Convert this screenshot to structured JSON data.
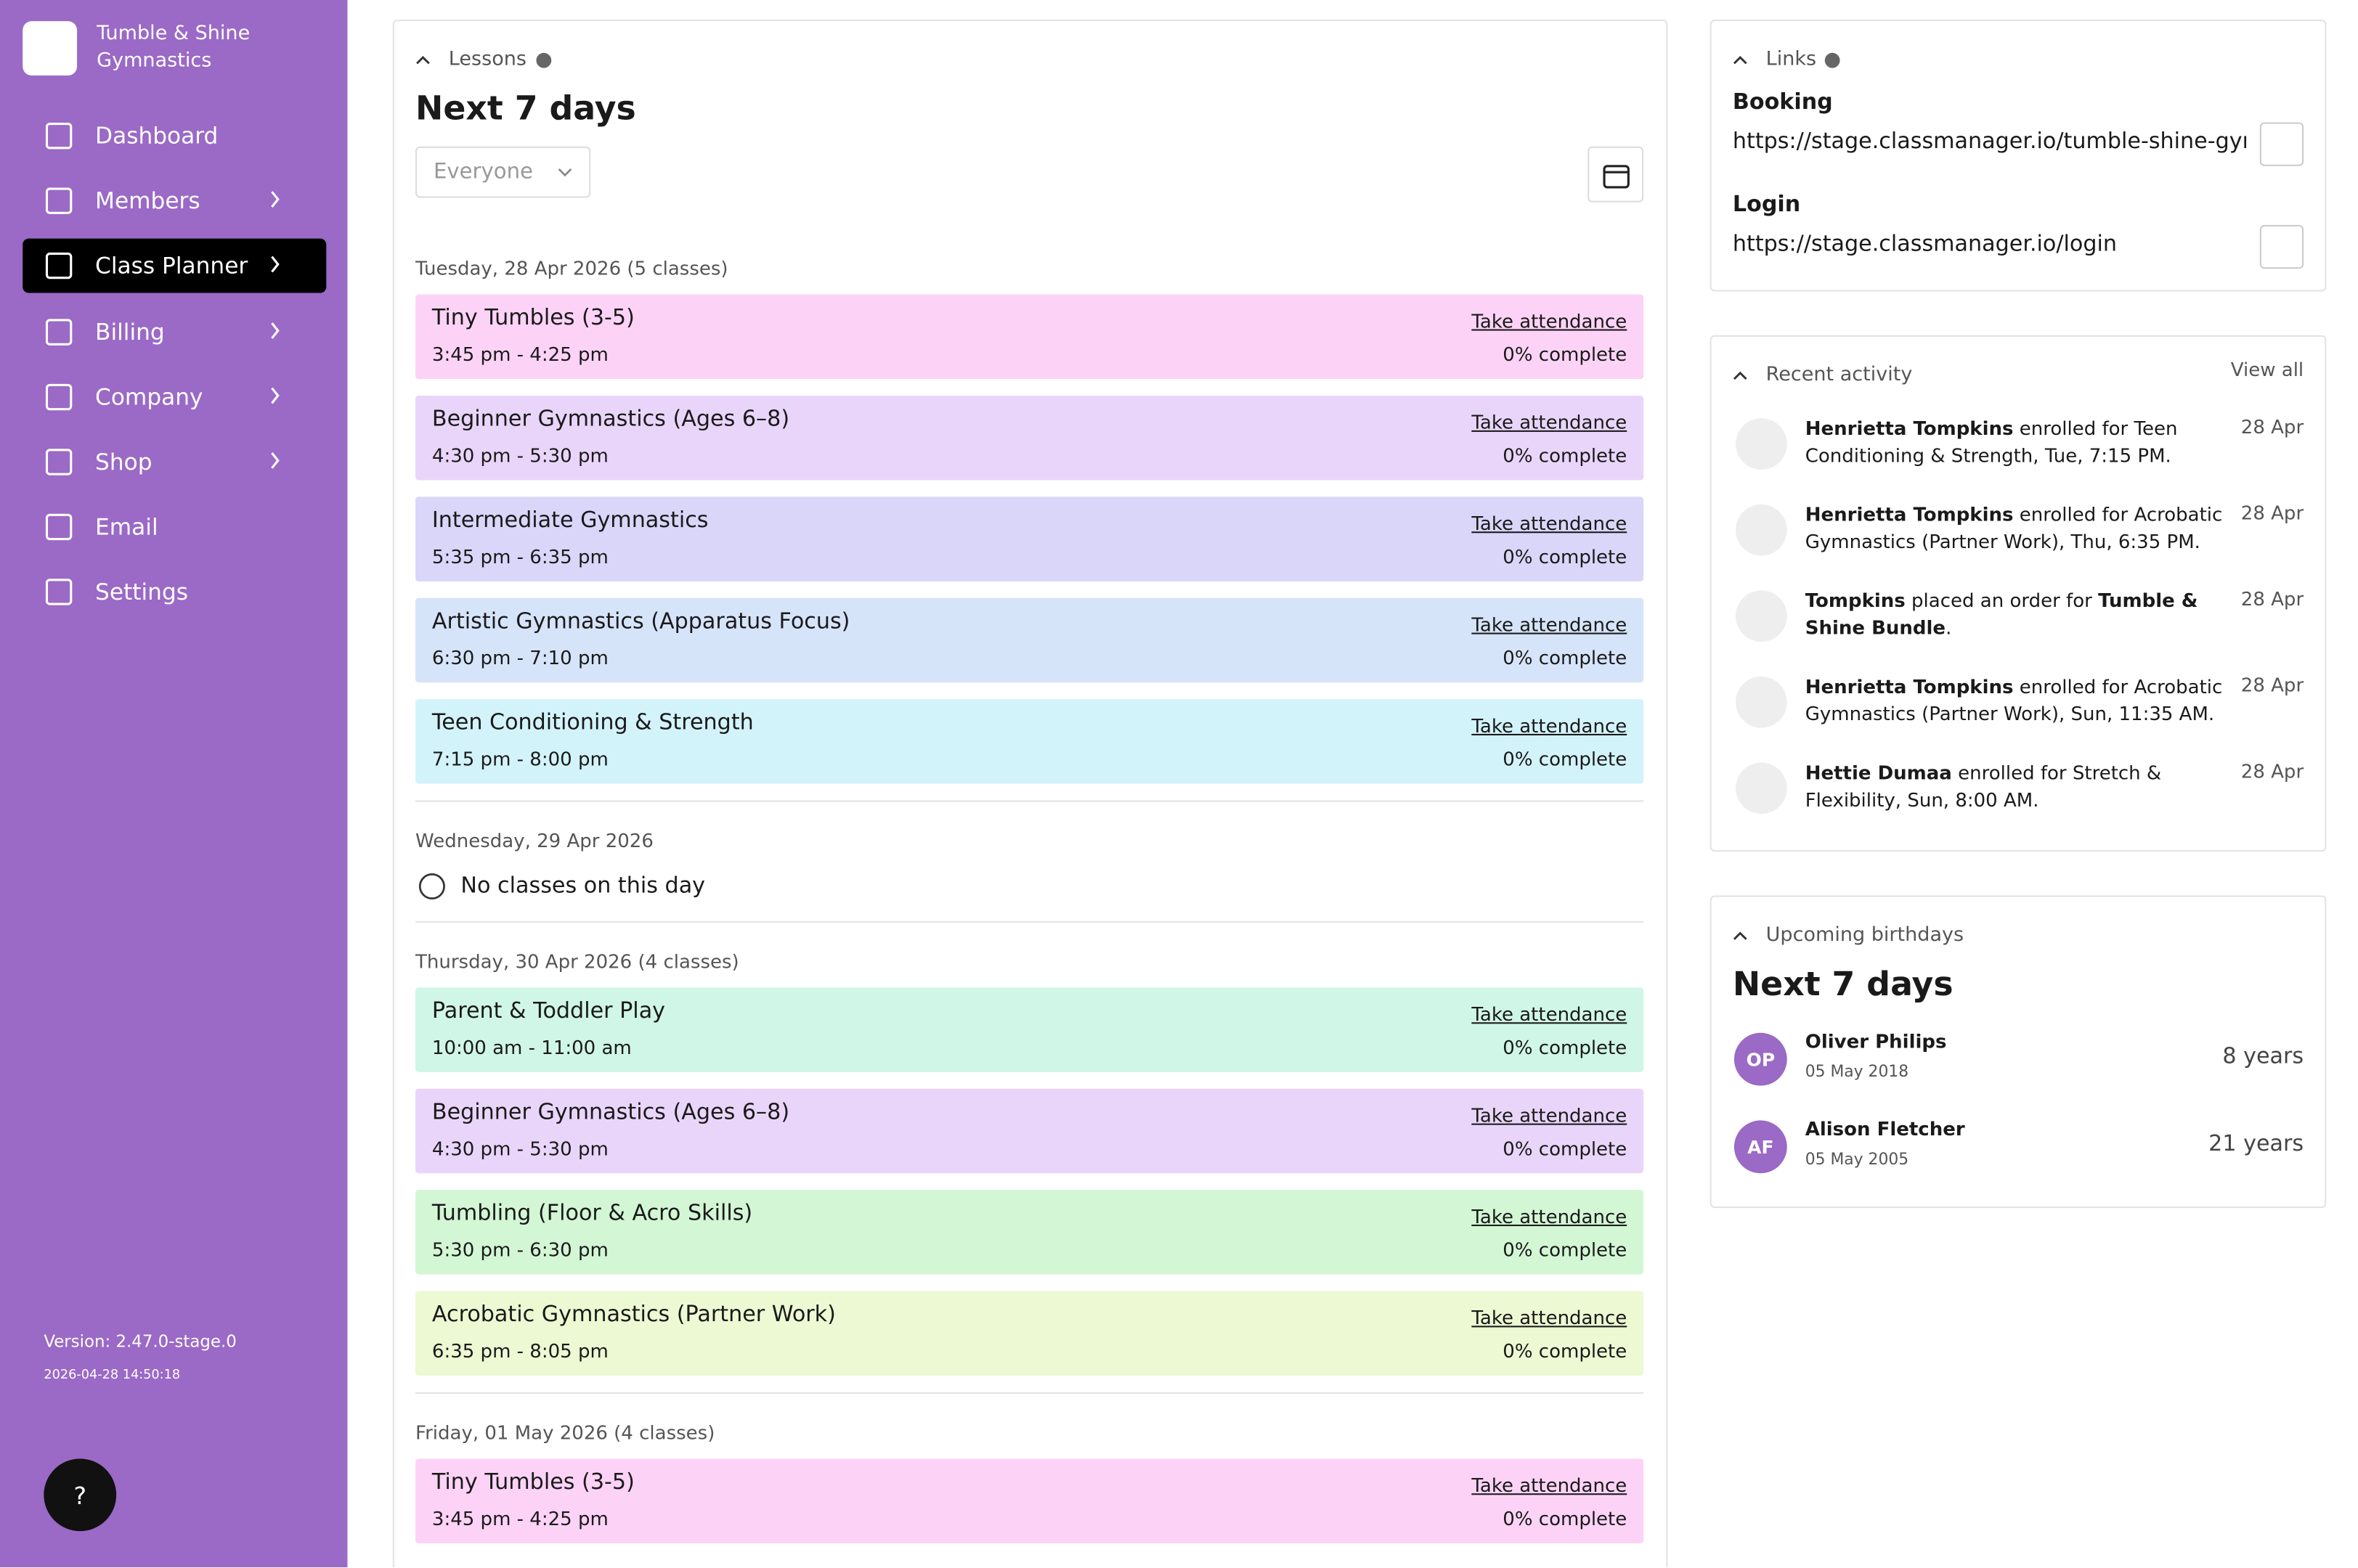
{
  "sidebar": {
    "brand": "Tumble & Shine Gymnastics",
    "nav": [
      {
        "label": "Dashboard",
        "arrow": false,
        "active": false
      },
      {
        "label": "Members",
        "arrow": true,
        "active": false
      },
      {
        "label": "Class Planner",
        "arrow": true,
        "active": true
      },
      {
        "label": "Billing",
        "arrow": true,
        "active": false
      },
      {
        "label": "Company",
        "arrow": true,
        "active": false
      },
      {
        "label": "Shop",
        "arrow": true,
        "active": false
      },
      {
        "label": "Email",
        "arrow": false,
        "active": false
      },
      {
        "label": "Settings",
        "arrow": false,
        "active": false
      }
    ],
    "version": "Version: 2.47.0-stage.0",
    "timestamp": "2026-04-28 14:50:18",
    "help": "?"
  },
  "lessons": {
    "section": "Lessons",
    "title": "Next 7 days",
    "filter": "Everyone",
    "days": [
      {
        "heading": "Tuesday, 28 Apr 2026 (5 classes)",
        "classes": [
          {
            "name": "Tiny Tumbles (3-5)",
            "time": "3:45 pm - 4:25 pm",
            "color": "#fcd3f6",
            "action": "Take attendance",
            "progress": "0% complete"
          },
          {
            "name": "Beginner Gymnastics (Ages 6–8)",
            "time": "4:30 pm - 5:30 pm",
            "color": "#ead5fa",
            "action": "Take attendance",
            "progress": "0% complete"
          },
          {
            "name": "Intermediate Gymnastics",
            "time": "5:35 pm - 6:35 pm",
            "color": "#d9d6fa",
            "action": "Take attendance",
            "progress": "0% complete"
          },
          {
            "name": "Artistic Gymnastics (Apparatus Focus)",
            "time": "6:30 pm - 7:10 pm",
            "color": "#d6e4fa",
            "action": "Take attendance",
            "progress": "0% complete"
          },
          {
            "name": "Teen Conditioning & Strength",
            "time": "7:15 pm - 8:00 pm",
            "color": "#d3f3fb",
            "action": "Take attendance",
            "progress": "0% complete"
          }
        ]
      },
      {
        "heading": "Wednesday, 29 Apr 2026",
        "empty": "No classes on this day",
        "classes": []
      },
      {
        "heading": "Thursday, 30 Apr 2026 (4 classes)",
        "classes": [
          {
            "name": "Parent & Toddler Play",
            "time": "10:00 am - 11:00 am",
            "color": "#d0f6e7",
            "action": "Take attendance",
            "progress": "0% complete"
          },
          {
            "name": "Beginner Gymnastics (Ages 6–8)",
            "time": "4:30 pm - 5:30 pm",
            "color": "#ead5fa",
            "action": "Take attendance",
            "progress": "0% complete"
          },
          {
            "name": "Tumbling (Floor & Acro Skills)",
            "time": "5:30 pm - 6:30 pm",
            "color": "#d3f7d5",
            "action": "Take attendance",
            "progress": "0% complete"
          },
          {
            "name": "Acrobatic Gymnastics (Partner Work)",
            "time": "6:35 pm - 8:05 pm",
            "color": "#ecf9d3",
            "action": "Take attendance",
            "progress": "0% complete"
          }
        ]
      },
      {
        "heading": "Friday, 01 May 2026 (4 classes)",
        "classes": [
          {
            "name": "Tiny Tumbles (3-5)",
            "time": "3:45 pm - 4:25 pm",
            "color": "#fcd3f6",
            "action": "Take attendance",
            "progress": "0% complete"
          }
        ]
      }
    ]
  },
  "links": {
    "section": "Links",
    "items": [
      {
        "label": "Booking",
        "url": "https://stage.classmanager.io/tumble-shine-gym..."
      },
      {
        "label": "Login",
        "url": "https://stage.classmanager.io/login"
      }
    ]
  },
  "activity": {
    "section": "Recent activity",
    "view_all": "View all",
    "items": [
      {
        "parts": [
          "Henrietta Tompkins",
          " enrolled for Teen Conditioning & Strength, Tue, 7:15 PM."
        ],
        "date": "28 Apr",
        "icon": "cal"
      },
      {
        "parts": [
          "Henrietta Tompkins",
          " enrolled for Acrobatic Gymnastics (Partner Work), Thu, 6:35 PM."
        ],
        "date": "28 Apr",
        "icon": "cal"
      },
      {
        "parts": [
          "Tompkins",
          " placed an order for ",
          "Tumble & Shine Bundle",
          "."
        ],
        "date": "28 Apr",
        "icon": "shop"
      },
      {
        "parts": [
          "Henrietta Tompkins",
          " enrolled for Acrobatic Gymnastics (Partner Work), Sun, 11:35 AM."
        ],
        "date": "28 Apr",
        "icon": "cal"
      },
      {
        "parts": [
          "Hettie Dumaa",
          " enrolled for Stretch & Flexibility, Sun, 8:00 AM."
        ],
        "date": "28 Apr",
        "icon": "cal"
      }
    ]
  },
  "birthdays": {
    "section": "Upcoming birthdays",
    "title": "Next 7 days",
    "people": [
      {
        "initials": "OP",
        "name": "Oliver Philips",
        "date": "05 May 2018",
        "age": "8 years"
      },
      {
        "initials": "AF",
        "name": "Alison Fletcher",
        "date": "05 May 2005",
        "age": "21 years"
      }
    ]
  }
}
